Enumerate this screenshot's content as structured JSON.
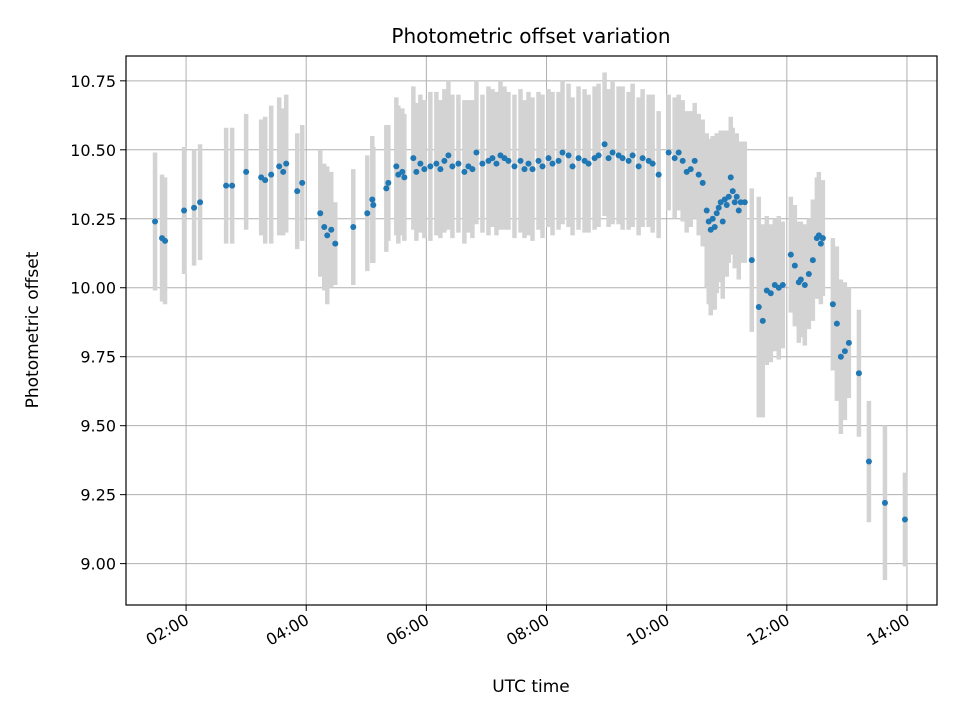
{
  "chart_data": {
    "type": "scatter",
    "title": "Photometric offset variation",
    "xlabel": "UTC time",
    "ylabel": "Photometric offset",
    "x_unit": "UTC time (HH:MM)",
    "xlim": [
      "01:00",
      "14:30"
    ],
    "ylim": [
      8.85,
      10.84
    ],
    "grid": true,
    "x_ticks": [
      "02:00",
      "04:00",
      "06:00",
      "08:00",
      "10:00",
      "12:00",
      "14:00"
    ],
    "y_ticks": [
      "9.00",
      "9.25",
      "9.50",
      "9.75",
      "10.00",
      "10.25",
      "10.50",
      "10.75"
    ],
    "colors": {
      "points": "#1f77b4",
      "errorbars": "#d3d3d3",
      "grid": "#b0b0b0"
    },
    "series": [
      {
        "x": [
          "01:29",
          "01:36",
          "01:39",
          "01:58",
          "02:08",
          "02:14",
          "02:40",
          "02:46",
          "03:00",
          "03:15",
          "03:19",
          "03:25",
          "03:33",
          "03:37",
          "03:40",
          "03:51",
          "03:56",
          "04:14",
          "04:18",
          "04:21",
          "04:25",
          "04:29",
          "04:47",
          "05:01",
          "05:06",
          "05:07",
          "05:20",
          "05:22",
          "05:30",
          "05:32",
          "05:36",
          "05:38",
          "05:47",
          "05:50",
          "05:54",
          "05:58",
          "06:04",
          "06:10",
          "06:14",
          "06:18",
          "06:22",
          "06:26",
          "06:32",
          "06:38",
          "06:42",
          "06:46",
          "06:50",
          "06:56",
          "07:02",
          "07:06",
          "07:10",
          "07:14",
          "07:18",
          "07:22",
          "07:28",
          "07:34",
          "07:38",
          "07:42",
          "07:46",
          "07:52",
          "07:56",
          "08:02",
          "08:06",
          "08:12",
          "08:16",
          "08:22",
          "08:26",
          "08:32",
          "08:38",
          "08:42",
          "08:48",
          "08:52",
          "08:58",
          "09:02",
          "09:06",
          "09:12",
          "09:16",
          "09:22",
          "09:26",
          "09:32",
          "09:36",
          "09:42",
          "09:46",
          "09:52",
          "10:02",
          "10:08",
          "10:12",
          "10:16",
          "10:20",
          "10:24",
          "10:28",
          "10:32",
          "10:36",
          "10:40",
          "10:42",
          "10:44",
          "10:46",
          "10:48",
          "10:50",
          "10:52",
          "10:54",
          "10:56",
          "10:58",
          "11:00",
          "11:02",
          "11:04",
          "11:06",
          "11:08",
          "11:10",
          "11:12",
          "11:14",
          "11:18",
          "11:25",
          "11:32",
          "11:36",
          "11:40",
          "11:44",
          "11:48",
          "11:52",
          "11:56",
          "12:04",
          "12:08",
          "12:12",
          "12:14",
          "12:18",
          "12:22",
          "12:26",
          "12:30",
          "12:32",
          "12:34",
          "12:36",
          "12:46",
          "12:50",
          "12:54",
          "12:58",
          "13:02",
          "13:12",
          "13:22",
          "13:38",
          "13:58"
        ],
        "y": [
          10.24,
          10.18,
          10.17,
          10.28,
          10.29,
          10.31,
          10.37,
          10.37,
          10.42,
          10.4,
          10.39,
          10.41,
          10.44,
          10.42,
          10.45,
          10.35,
          10.38,
          10.27,
          10.22,
          10.19,
          10.21,
          10.16,
          10.22,
          10.27,
          10.32,
          10.3,
          10.36,
          10.38,
          10.44,
          10.41,
          10.42,
          10.4,
          10.47,
          10.42,
          10.45,
          10.43,
          10.44,
          10.45,
          10.43,
          10.46,
          10.48,
          10.44,
          10.45,
          10.42,
          10.44,
          10.43,
          10.49,
          10.45,
          10.46,
          10.47,
          10.45,
          10.48,
          10.47,
          10.46,
          10.44,
          10.46,
          10.43,
          10.45,
          10.43,
          10.46,
          10.44,
          10.47,
          10.45,
          10.46,
          10.49,
          10.48,
          10.44,
          10.47,
          10.46,
          10.45,
          10.47,
          10.48,
          10.52,
          10.47,
          10.49,
          10.48,
          10.47,
          10.46,
          10.48,
          10.44,
          10.47,
          10.46,
          10.45,
          10.41,
          10.49,
          10.47,
          10.49,
          10.46,
          10.42,
          10.43,
          10.46,
          10.41,
          10.38,
          10.28,
          10.24,
          10.21,
          10.25,
          10.22,
          10.27,
          10.29,
          10.31,
          10.24,
          10.32,
          10.3,
          10.33,
          10.4,
          10.35,
          10.31,
          10.33,
          10.28,
          10.31,
          10.31,
          10.1,
          9.93,
          9.88,
          9.99,
          9.98,
          10.01,
          10.0,
          10.01,
          10.12,
          10.08,
          10.02,
          10.03,
          10.01,
          10.05,
          10.1,
          10.18,
          10.19,
          10.16,
          10.18,
          9.94,
          9.87,
          9.75,
          9.77,
          9.8,
          9.69,
          9.37,
          9.22,
          9.16
        ],
        "err": [
          0.25,
          0.23,
          0.23,
          0.23,
          0.21,
          0.21,
          0.21,
          0.21,
          0.21,
          0.21,
          0.23,
          0.25,
          0.25,
          0.23,
          0.25,
          0.21,
          0.21,
          0.23,
          0.23,
          0.25,
          0.21,
          0.15,
          0.21,
          0.21,
          0.23,
          0.21,
          0.23,
          0.21,
          0.25,
          0.25,
          0.23,
          0.23,
          0.26,
          0.25,
          0.25,
          0.25,
          0.27,
          0.26,
          0.25,
          0.26,
          0.27,
          0.26,
          0.25,
          0.26,
          0.24,
          0.25,
          0.26,
          0.25,
          0.27,
          0.25,
          0.26,
          0.27,
          0.26,
          0.25,
          0.26,
          0.26,
          0.25,
          0.26,
          0.26,
          0.25,
          0.26,
          0.25,
          0.26,
          0.25,
          0.26,
          0.26,
          0.25,
          0.26,
          0.26,
          0.25,
          0.26,
          0.26,
          0.26,
          0.25,
          0.26,
          0.25,
          0.26,
          0.25,
          0.26,
          0.25,
          0.25,
          0.24,
          0.25,
          0.23,
          0.21,
          0.22,
          0.21,
          0.22,
          0.22,
          0.21,
          0.21,
          0.22,
          0.23,
          0.28,
          0.3,
          0.31,
          0.3,
          0.3,
          0.29,
          0.27,
          0.26,
          0.28,
          0.25,
          0.26,
          0.24,
          0.22,
          0.23,
          0.24,
          0.23,
          0.25,
          0.22,
          0.22,
          0.26,
          0.4,
          0.35,
          0.27,
          0.25,
          0.24,
          0.26,
          0.23,
          0.21,
          0.22,
          0.22,
          0.21,
          0.22,
          0.2,
          0.22,
          0.22,
          0.23,
          0.22,
          0.21,
          0.24,
          0.28,
          0.28,
          0.25,
          0.2,
          0.23,
          0.22,
          0.28,
          0.17
        ]
      }
    ]
  }
}
